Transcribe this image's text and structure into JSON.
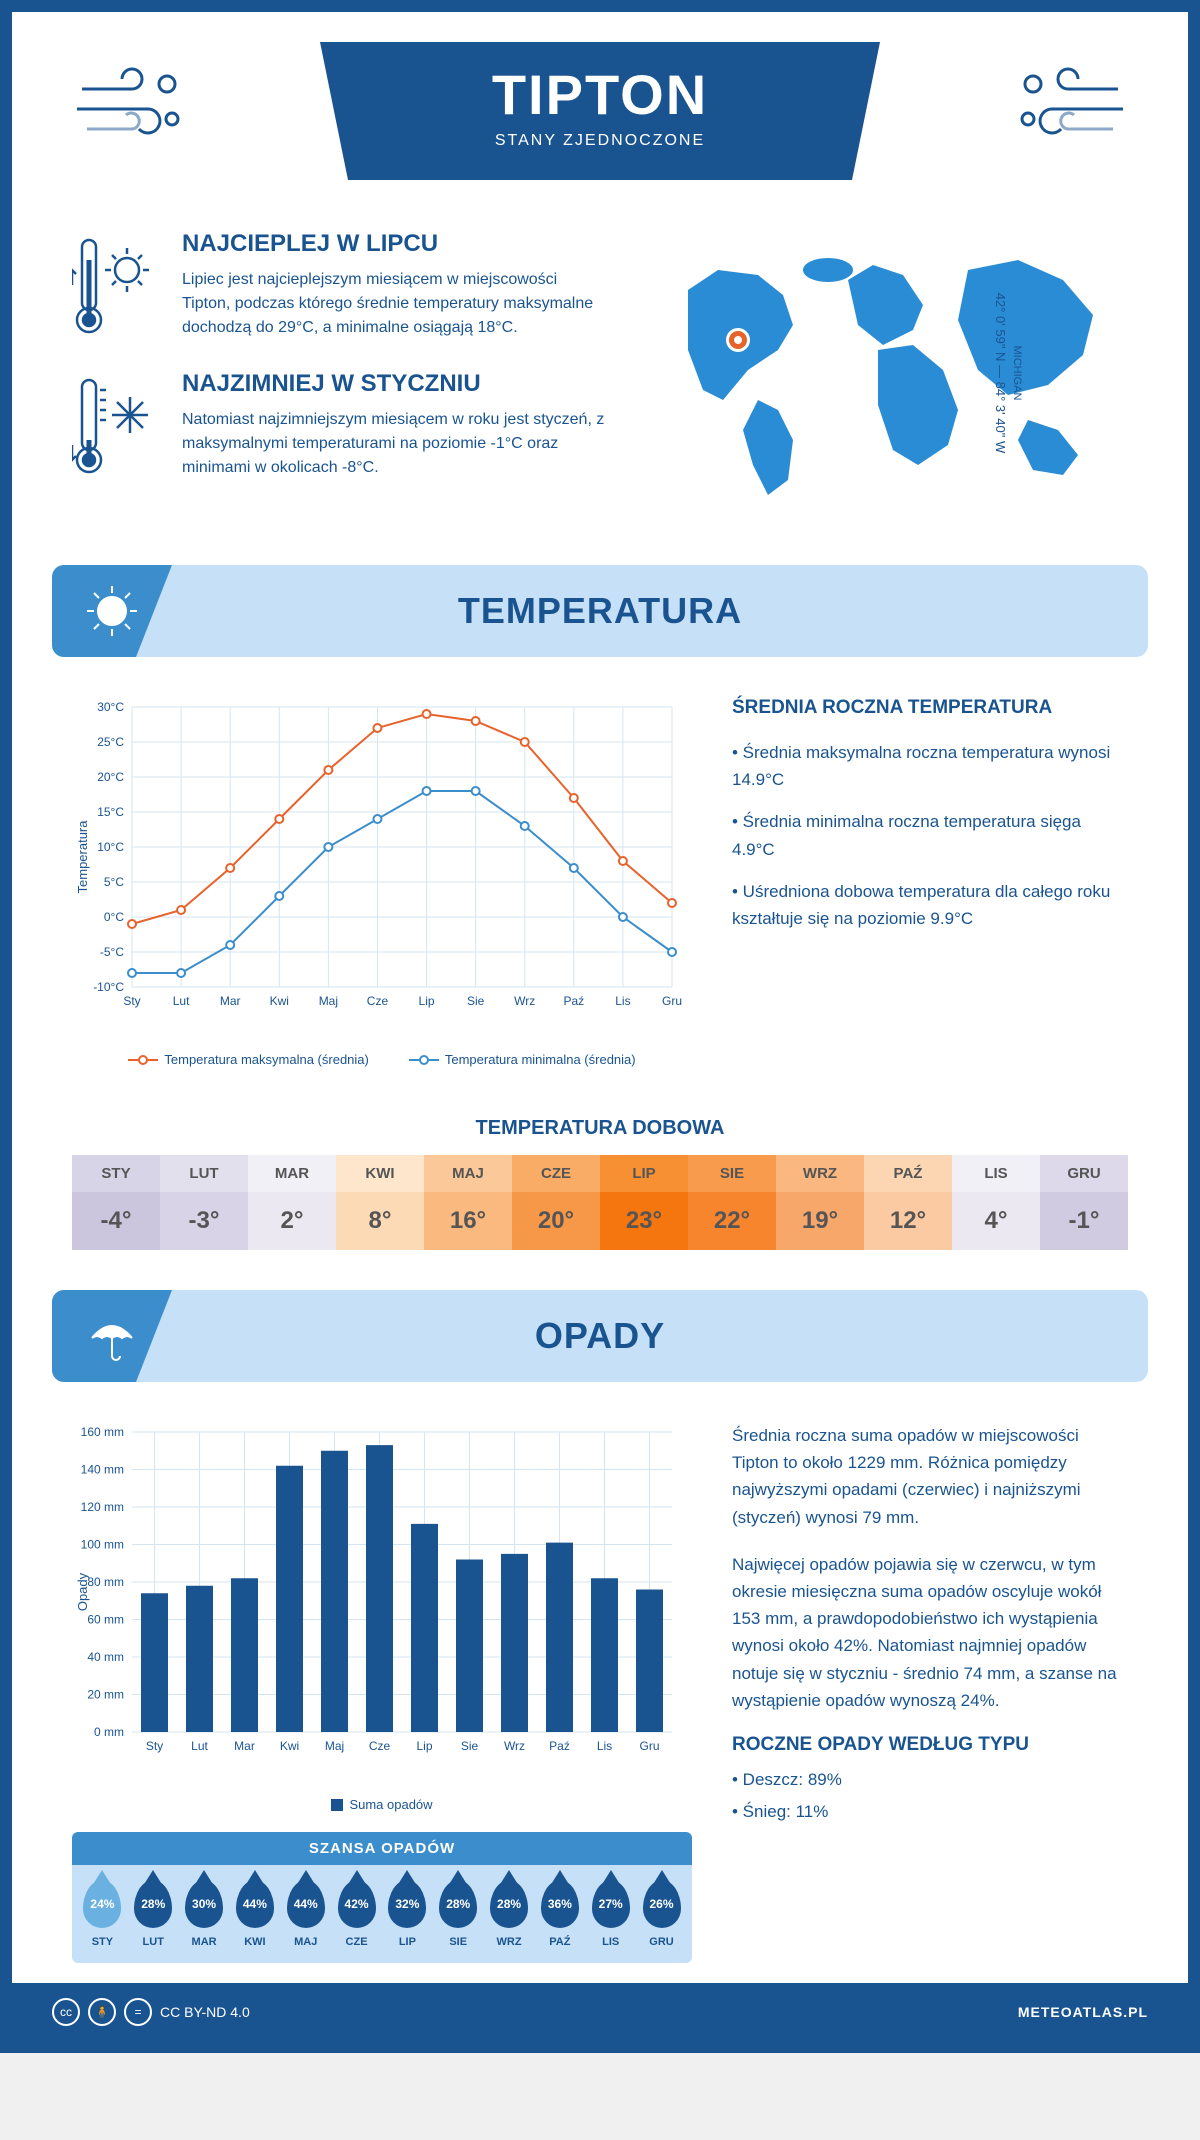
{
  "header": {
    "title": "TIPTON",
    "subtitle": "STANY ZJEDNOCZONE"
  },
  "coords": {
    "region": "MICHIGAN",
    "text": "42° 0' 59\" N — 84° 3' 40\" W"
  },
  "intro": {
    "hot": {
      "title": "NAJCIEPLEJ W LIPCU",
      "text": "Lipiec jest najcieplejszym miesiącem w miejscowości Tipton, podczas którego średnie temperatury maksymalne dochodzą do 29°C, a minimalne osiągają 18°C."
    },
    "cold": {
      "title": "NAJZIMNIEJ W STYCZNIU",
      "text": "Natomiast najzimniejszym miesiącem w roku jest styczeń, z maksymalnymi temperaturami na poziomie -1°C oraz minimami w okolicach -8°C."
    }
  },
  "temp_section": {
    "header": "TEMPERATURA",
    "chart": {
      "type": "line",
      "months": [
        "Sty",
        "Lut",
        "Mar",
        "Kwi",
        "Maj",
        "Cze",
        "Lip",
        "Sie",
        "Wrz",
        "Paź",
        "Lis",
        "Gru"
      ],
      "max": [
        -1,
        1,
        7,
        14,
        21,
        27,
        29,
        28,
        25,
        17,
        8,
        2
      ],
      "min": [
        -8,
        -8,
        -4,
        3,
        10,
        14,
        18,
        18,
        13,
        7,
        0,
        -5
      ],
      "max_color": "#e8622c",
      "min_color": "#3b8dcc",
      "ylim": [
        -10,
        30
      ],
      "ytick_step": 5,
      "grid_color": "#d5e5f2",
      "y_label": "Temperatura",
      "legend_max": "Temperatura maksymalna (średnia)",
      "legend_min": "Temperatura minimalna (średnia)"
    },
    "info": {
      "title": "ŚREDNIA ROCZNA TEMPERATURA",
      "b1": "• Średnia maksymalna roczna temperatura wynosi 14.9°C",
      "b2": "• Średnia minimalna roczna temperatura sięga 4.9°C",
      "b3": "• Uśredniona dobowa temperatura dla całego roku kształtuje się na poziomie 9.9°C"
    },
    "dobowa_title": "TEMPERATURA DOBOWA",
    "dobowa": {
      "months": [
        "STY",
        "LUT",
        "MAR",
        "KWI",
        "MAJ",
        "CZE",
        "LIP",
        "SIE",
        "WRZ",
        "PAŹ",
        "LIS",
        "GRU"
      ],
      "values": [
        "-4°",
        "-3°",
        "2°",
        "8°",
        "16°",
        "20°",
        "23°",
        "22°",
        "19°",
        "12°",
        "4°",
        "-1°"
      ],
      "head_colors": [
        "#d8d4e8",
        "#e3e0ee",
        "#f2f0f7",
        "#fde6cc",
        "#fbc999",
        "#f9ac66",
        "#f78f33",
        "#f89b4d",
        "#fab880",
        "#fcd5b3",
        "#f2f0f7",
        "#ddd9eb"
      ],
      "val_colors": [
        "#cbc5de",
        "#d8d3e6",
        "#ebe8f2",
        "#fcdab5",
        "#f9b97f",
        "#f79849",
        "#f5760f",
        "#f6852e",
        "#f8a76b",
        "#fbcaa2",
        "#ebe8f2",
        "#d1cbe2"
      ],
      "text_color": "#555"
    }
  },
  "precip_section": {
    "header": "OPADY",
    "chart": {
      "type": "bar",
      "months": [
        "Sty",
        "Lut",
        "Mar",
        "Kwi",
        "Maj",
        "Cze",
        "Lip",
        "Sie",
        "Wrz",
        "Paź",
        "Lis",
        "Gru"
      ],
      "values": [
        74,
        78,
        82,
        142,
        150,
        153,
        111,
        92,
        95,
        101,
        82,
        76
      ],
      "bar_color": "#1a5490",
      "ylim": [
        0,
        160
      ],
      "ytick_step": 20,
      "grid_color": "#d5e5f2",
      "y_label": "Opady",
      "legend": "Suma opadów"
    },
    "info": {
      "p1": "Średnia roczna suma opadów w miejscowości Tipton to około 1229 mm. Różnica pomiędzy najwyższymi opadami (czerwiec) i najniższymi (styczeń) wynosi 79 mm.",
      "p2": "Najwięcej opadów pojawia się w czerwcu, w tym okresie miesięczna suma opadów oscyluje wokół 153 mm, a prawdopodobieństwo ich wystąpienia wynosi około 42%. Natomiast najmniej opadów notuje się w styczniu - średnio 74 mm, a szanse na wystąpienie opadów wynoszą 24%.",
      "type_title": "ROCZNE OPADY WEDŁUG TYPU",
      "rain": "• Deszcz: 89%",
      "snow": "• Śnieg: 11%"
    },
    "chance": {
      "title": "SZANSA OPADÓW",
      "months": [
        "STY",
        "LUT",
        "MAR",
        "KWI",
        "MAJ",
        "CZE",
        "LIP",
        "SIE",
        "WRZ",
        "PAŹ",
        "LIS",
        "GRU"
      ],
      "values": [
        "24%",
        "28%",
        "30%",
        "44%",
        "44%",
        "42%",
        "32%",
        "28%",
        "28%",
        "36%",
        "27%",
        "26%"
      ],
      "first_drop_color": "#6ab0e0",
      "drop_color": "#1a5490"
    }
  },
  "footer": {
    "license": "CC BY-ND 4.0",
    "site": "METEOATLAS.PL"
  },
  "colors": {
    "primary": "#1a5490",
    "light_blue": "#c5e0f7",
    "mid_blue": "#3b8dcc",
    "map_blue": "#2b8cd6"
  }
}
